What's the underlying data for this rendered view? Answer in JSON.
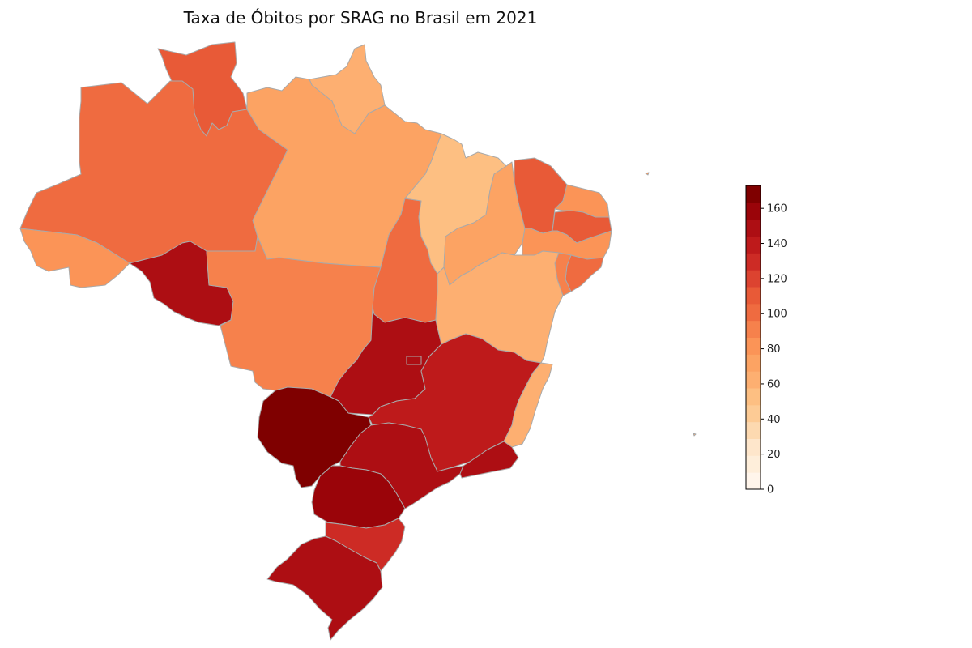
{
  "title": "Taxa de Óbitos por SRAG no Brasil em 2021",
  "colorbar": {
    "min": 0,
    "max": 173,
    "ticks": [
      "0",
      "20",
      "40",
      "60",
      "80",
      "100",
      "120",
      "140",
      "160"
    ],
    "tick_values": [
      0,
      20,
      40,
      60,
      80,
      100,
      120,
      140,
      160
    ],
    "color_steps": [
      "#fff5eb",
      "#feeeda",
      "#fee6cb",
      "#fdd9b0",
      "#fdcb95",
      "#fdbf82",
      "#fdaf71",
      "#fca363",
      "#fb9457",
      "#f6814c",
      "#ef6b40",
      "#e85a37",
      "#dc4330",
      "#cd2b25",
      "#be1a1b",
      "#ad0e13",
      "#9a0409",
      "#7f0000"
    ]
  },
  "regions": [
    {
      "id": "RR",
      "value": 106
    },
    {
      "id": "AP",
      "value": 65
    },
    {
      "id": "AM",
      "value": 100
    },
    {
      "id": "PA",
      "value": 72
    },
    {
      "id": "AC",
      "value": 82
    },
    {
      "id": "RO",
      "value": 148
    },
    {
      "id": "MT",
      "value": 90
    },
    {
      "id": "TO",
      "value": 102
    },
    {
      "id": "MA",
      "value": 56
    },
    {
      "id": "PI",
      "value": 72
    },
    {
      "id": "CE",
      "value": 108
    },
    {
      "id": "RN",
      "value": 84
    },
    {
      "id": "PB",
      "value": 106
    },
    {
      "id": "PE",
      "value": 84
    },
    {
      "id": "AL",
      "value": 100
    },
    {
      "id": "SE",
      "value": 96
    },
    {
      "id": "BA",
      "value": 66
    },
    {
      "id": "GO",
      "value": 150
    },
    {
      "id": "DF",
      "value": 150
    },
    {
      "id": "MG",
      "value": 138
    },
    {
      "id": "ES",
      "value": 62
    },
    {
      "id": "MS",
      "value": 173
    },
    {
      "id": "SP",
      "value": 150
    },
    {
      "id": "RJ",
      "value": 152
    },
    {
      "id": "PR",
      "value": 158
    },
    {
      "id": "SC",
      "value": 130
    },
    {
      "id": "RS",
      "value": 150
    }
  ]
}
